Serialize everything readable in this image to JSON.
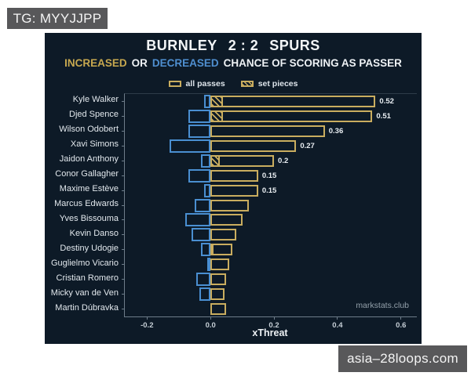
{
  "page": {
    "tg_badge": "TG: MYYJJPP",
    "site_badge": "asia–28loops.com",
    "badge_bg": "#58585a",
    "background": "#ffffff"
  },
  "chart": {
    "background": "#0d1a27",
    "title": {
      "home": "BURNLEY",
      "score": "2 : 2",
      "away": "SPURS"
    },
    "subtitle": {
      "word_increased": "INCREASED",
      "word_or": "OR",
      "word_decreased": "DECREASED",
      "rest": "CHANCE OF SCORING AS PASSER",
      "increased_color": "#c7a84f",
      "decreased_color": "#4f8fd0"
    },
    "watermark": "markstats.club"
  },
  "chart_data": {
    "type": "bar",
    "orientation": "horizontal",
    "xlabel": "xThreat",
    "xlim": [
      -0.27,
      0.65
    ],
    "xticks": [
      {
        "value": -0.2,
        "label": "-0.2"
      },
      {
        "value": 0.0,
        "label": "0.0"
      },
      {
        "value": 0.2,
        "label": "0.2"
      },
      {
        "value": 0.4,
        "label": "0.4"
      },
      {
        "value": 0.6,
        "label": "0.6"
      }
    ],
    "legend": [
      {
        "label": "all passes",
        "style": "outline"
      },
      {
        "label": "set pieces",
        "style": "hatch"
      }
    ],
    "colors": {
      "increase": "#c9ad5f",
      "decrease": "#4a8fd1"
    },
    "categories": [
      "Kyle Walker",
      "Djed Spence",
      "Wilson Odobert",
      "Xavi Simons",
      "Jaidon Anthony",
      "Conor Gallagher",
      "Maxime Estève",
      "Marcus Edwards",
      "Yves Bissouma",
      "Kevin Danso",
      "Destiny Udogie",
      "Guglielmo Vicario",
      "Cristian Romero",
      "Micky van de Ven",
      "Martin Dúbravka"
    ],
    "series": [
      {
        "name": "all passes (increase)",
        "values": [
          0.52,
          0.51,
          0.36,
          0.27,
          0.2,
          0.15,
          0.15,
          0.12,
          0.1,
          0.08,
          0.07,
          0.06,
          0.05,
          0.045,
          0.05
        ]
      },
      {
        "name": "decrease",
        "values": [
          -0.02,
          -0.07,
          -0.07,
          -0.13,
          -0.03,
          -0.07,
          -0.02,
          -0.05,
          -0.08,
          -0.06,
          -0.03,
          -0.01,
          -0.045,
          -0.035,
          0
        ]
      },
      {
        "name": "set pieces",
        "values": [
          0.04,
          0.04,
          0,
          0,
          0.03,
          0,
          0,
          0,
          0,
          0,
          0.01,
          0,
          0,
          0,
          0
        ]
      }
    ],
    "bar_labels": [
      "0.52",
      "0.51",
      "0.36",
      "0.27",
      "0.2",
      "0.15",
      "0.15",
      "",
      "",
      "",
      "",
      "",
      "",
      "",
      ""
    ]
  }
}
